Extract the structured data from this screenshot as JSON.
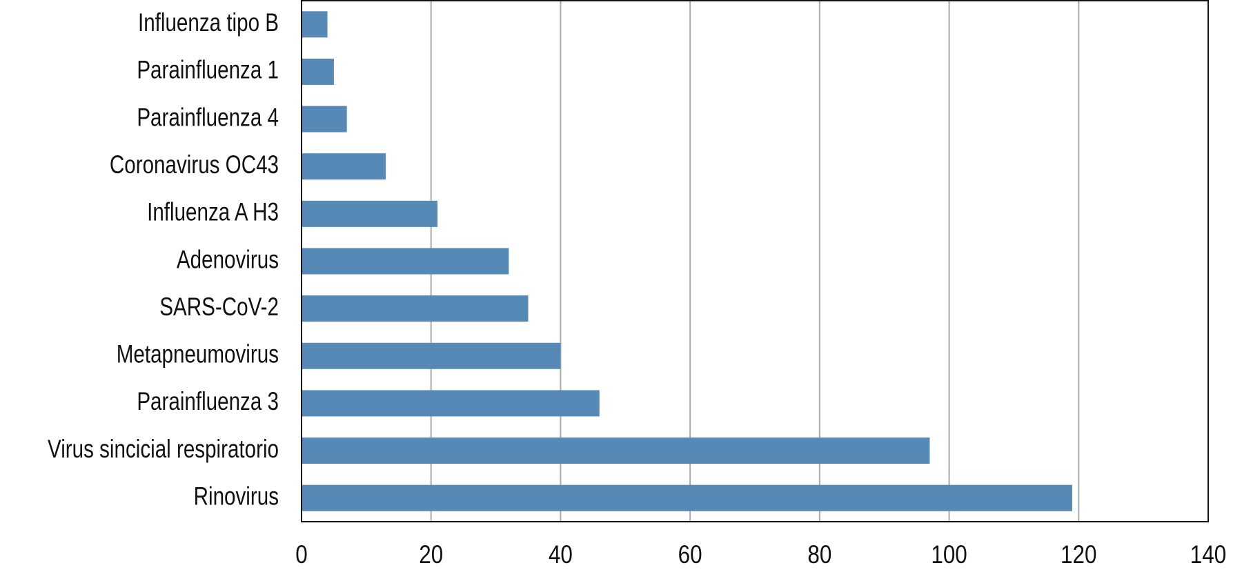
{
  "chart_data": {
    "type": "barh",
    "categories": [
      "Influenza tipo B",
      "Parainfluenza 1",
      "Parainfluenza 4",
      "Coronavirus OC43",
      "Influenza A H3",
      "Adenovirus",
      "SARS-CoV-2",
      "Metapneumovirus",
      "Parainfluenza 3",
      "Virus sincicial respiratorio",
      "Rinovirus"
    ],
    "values": [
      4,
      5,
      7,
      13,
      21,
      32,
      35,
      40,
      46,
      97,
      119
    ],
    "color": "#5689b5",
    "xlim": [
      0,
      140
    ],
    "xticks": [
      0,
      20,
      40,
      60,
      80,
      100,
      120,
      140
    ],
    "grid": true
  }
}
